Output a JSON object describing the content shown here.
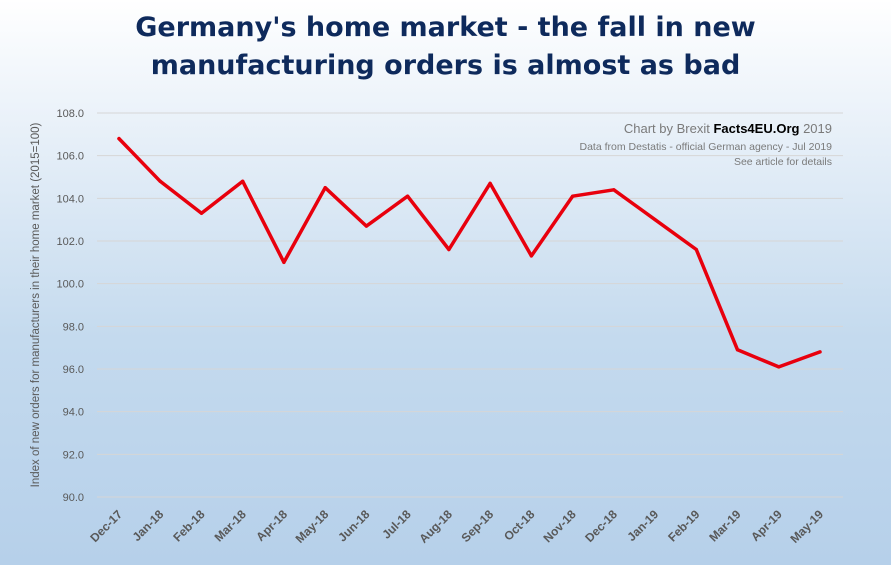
{
  "chart_data": {
    "type": "line",
    "title_lines": [
      "Germany's home market - the fall in new",
      "manufacturing orders is almost as bad"
    ],
    "xlabel": "",
    "ylabel": "Index of new orders for manufacturers in their home market (2015=100)",
    "categories": [
      "Dec-17",
      "Jan-18",
      "Feb-18",
      "Mar-18",
      "Apr-18",
      "May-18",
      "Jun-18",
      "Jul-18",
      "Aug-18",
      "Sep-18",
      "Oct-18",
      "Nov-18",
      "Dec-18",
      "Jan-19",
      "Feb-19",
      "Mar-19",
      "Apr-19",
      "May-19"
    ],
    "series": [
      {
        "values": [
          106.8,
          104.8,
          103.3,
          104.8,
          101.0,
          104.5,
          102.7,
          104.1,
          101.6,
          104.7,
          101.3,
          104.1,
          104.4,
          103.0,
          101.6,
          96.9,
          96.1,
          96.8
        ],
        "color": "#e8000d"
      }
    ],
    "ylim": [
      90,
      108
    ],
    "yticks": [
      "90.0",
      "92.0",
      "94.0",
      "96.0",
      "98.0",
      "100.0",
      "102.0",
      "104.0",
      "106.0",
      "108.0"
    ],
    "grid": true,
    "legend": "none",
    "credit": {
      "line1_prefix": "Chart by Brexit ",
      "line1_brand": "Facts4EU.Org",
      "line1_suffix": " 2019",
      "line2": "Data from Destatis - official German agency - Jul 2019",
      "line3": "See article for details"
    }
  }
}
